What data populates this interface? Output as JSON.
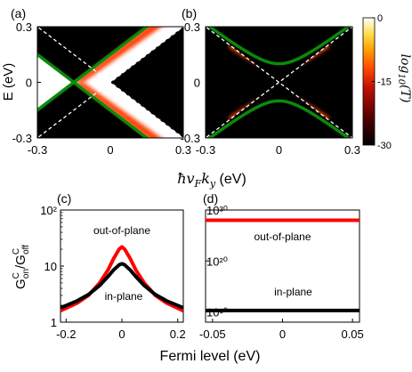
{
  "figure": {
    "ylabel_top": "E (eV)",
    "xlabel_top": "ħv_F k_y (eV)",
    "xlabel_bottom": "Fermi level (eV)",
    "ylabel_bottom": "G^C_on/G^C_off"
  },
  "colorbar": {
    "label": "log10(T)",
    "ticks": [
      "0",
      "-15",
      "-30"
    ],
    "range": [
      -30,
      0
    ],
    "colors": [
      "#000000",
      "#4a0000",
      "#c01000",
      "#ff4800",
      "#ffa000",
      "#ffe050",
      "#ffffff"
    ]
  },
  "colors": {
    "band_edge": "#0a8a0a",
    "dashed": "#ffffff",
    "out_of_plane": "#ff0000",
    "in_plane": "#000000"
  },
  "chart_data": [
    {
      "type": "heatmap",
      "panel": "(a)",
      "x_range": [
        -0.3,
        0.3
      ],
      "y_range": [
        -0.3,
        0.3
      ],
      "x_ticks": [
        "-0.3",
        "0",
        "0.3"
      ],
      "y_ticks": [
        "0.3",
        "0",
        "-0.3"
      ],
      "green_cone_center": [
        -0.15,
        0.0
      ],
      "dashed_cone_center": [
        0.0,
        0.0
      ]
    },
    {
      "type": "heatmap",
      "panel": "(b)",
      "x_range": [
        -0.3,
        0.3
      ],
      "y_range": [
        -0.3,
        0.3
      ],
      "x_ticks": [
        "-0.3",
        "0",
        "0.3"
      ],
      "y_ticks": [
        "0.3",
        "0",
        "-0.3"
      ],
      "gap": 0.1
    },
    {
      "type": "line",
      "panel": "(c)",
      "x_range": [
        -0.22,
        0.22
      ],
      "y_range": [
        1,
        100
      ],
      "y_scale": "log",
      "x_ticks": [
        "-0.2",
        "0",
        "0.2"
      ],
      "y_ticks": [
        "10²",
        "10",
        "1"
      ],
      "series": [
        {
          "name": "out-of-plane",
          "x": [
            -0.22,
            -0.16,
            -0.12,
            -0.08,
            -0.05,
            -0.03,
            -0.01,
            0.0,
            0.01,
            0.03,
            0.05,
            0.08,
            0.12,
            0.16,
            0.22
          ],
          "y": [
            1.6,
            2.2,
            3.0,
            5.0,
            8.5,
            13.5,
            20,
            22,
            20,
            13.5,
            8.5,
            5.0,
            3.0,
            2.2,
            1.6
          ]
        },
        {
          "name": "in-plane",
          "x": [
            -0.22,
            -0.16,
            -0.12,
            -0.08,
            -0.05,
            -0.03,
            -0.01,
            0.0,
            0.01,
            0.03,
            0.05,
            0.08,
            0.12,
            0.16,
            0.22
          ],
          "y": [
            1.8,
            2.4,
            3.1,
            4.5,
            6.5,
            8.5,
            10.5,
            11,
            10.5,
            8.5,
            6.5,
            4.5,
            3.1,
            2.4,
            1.8
          ]
        }
      ]
    },
    {
      "type": "line",
      "panel": "(d)",
      "x_range": [
        -0.055,
        0.055
      ],
      "y_range": [
        100000000.0,
        1e+30
      ],
      "y_scale": "log",
      "x_ticks": [
        "-0.05",
        "0",
        "0.05"
      ],
      "y_ticks": [
        "10³⁰",
        "10²⁰",
        "10¹⁰"
      ],
      "series": [
        {
          "name": "out-of-plane",
          "x": [
            -0.055,
            0.055
          ],
          "y": [
            1e+28,
            1e+28
          ]
        },
        {
          "name": "in-plane",
          "x": [
            -0.055,
            0.055
          ],
          "y": [
            20000000000.0,
            20000000000.0
          ]
        }
      ]
    }
  ]
}
